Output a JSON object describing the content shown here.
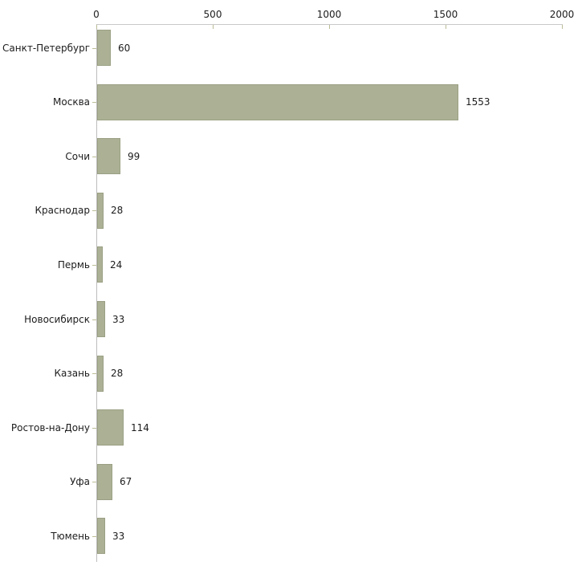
{
  "chart_data": {
    "type": "bar",
    "orientation": "horizontal",
    "title": "",
    "categories": [
      "Санкт-Петербург",
      "Москва",
      "Сочи",
      "Краснодар",
      "Пермь",
      "Новосибирск",
      "Казань",
      "Ростов-на-Дону",
      "Уфа",
      "Тюмень"
    ],
    "values": [
      60,
      1553,
      99,
      28,
      24,
      33,
      28,
      114,
      67,
      33
    ],
    "value_labels": [
      "60",
      "1553",
      "99",
      "28",
      "24",
      "33",
      "28",
      "114",
      "67",
      "33"
    ],
    "x_ticks": [
      0,
      500,
      1000,
      1500,
      2000
    ],
    "x_tick_labels": [
      "0",
      "500",
      "1000",
      "1500",
      "2000"
    ],
    "xlim": [
      0,
      2000
    ],
    "grid": false,
    "legend": "none",
    "colors": {
      "bar_fill": "#acb196",
      "bar_border": "#9aa083",
      "x_axis_line": "#c9c9c9",
      "y_axis_line": "#bdbdbd",
      "tick_mark": "#bcbc96",
      "text": "#1c1c1c",
      "background": "#ffffff"
    }
  }
}
